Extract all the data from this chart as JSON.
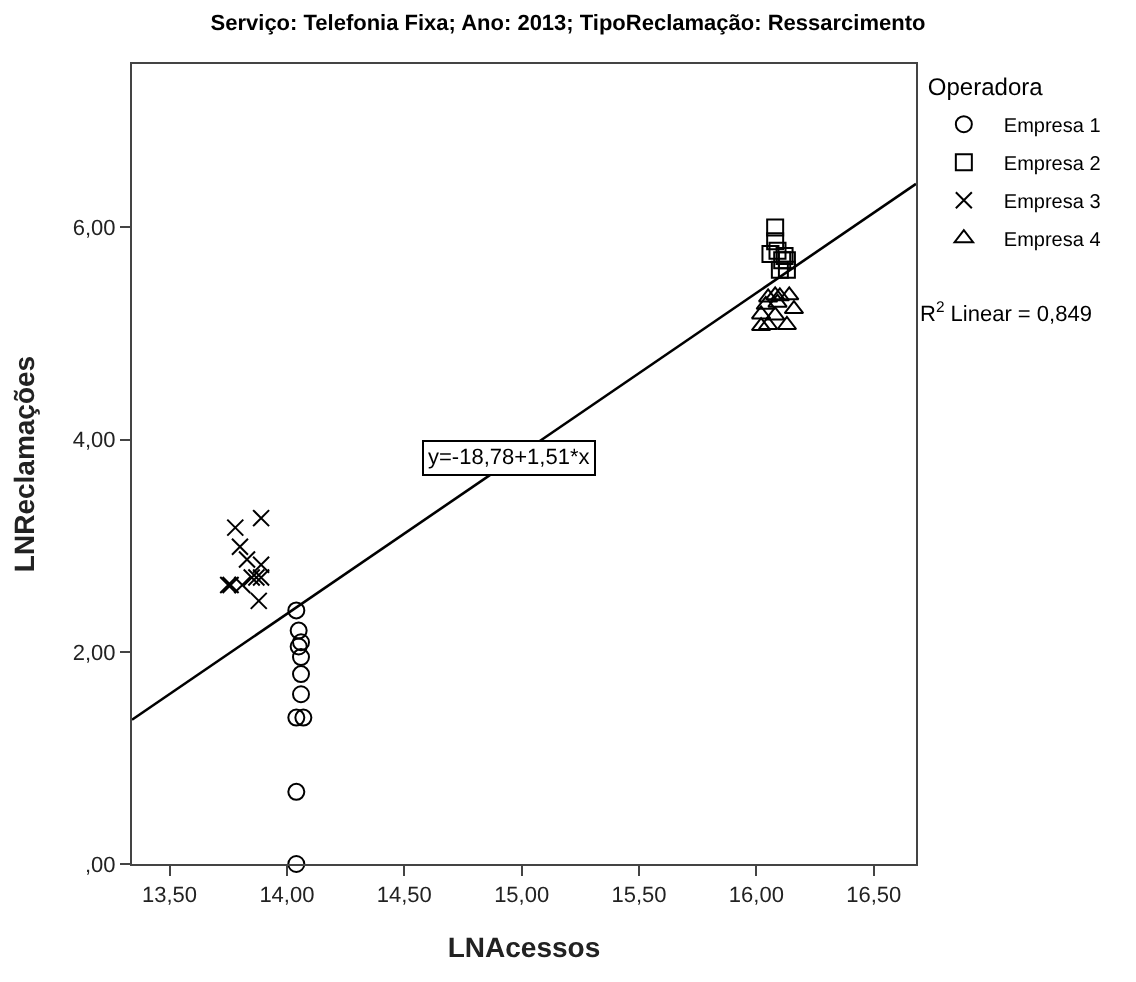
{
  "chart_data": {
    "type": "scatter",
    "title": "Serviço: Telefonia Fixa; Ano: 2013; TipoReclamação: Ressarcimento",
    "xlabel": "LNAcessos",
    "ylabel": "LNReclamações",
    "legend_title": "Operadora",
    "legend": "top right",
    "xlim": [
      13.34,
      16.68
    ],
    "ylim": [
      0,
      7.54
    ],
    "xticks": [
      {
        "value": 13.5,
        "label": "13,50"
      },
      {
        "value": 14.0,
        "label": "14,00"
      },
      {
        "value": 14.5,
        "label": "14,50"
      },
      {
        "value": 15.0,
        "label": "15,00"
      },
      {
        "value": 15.5,
        "label": "15,50"
      },
      {
        "value": 16.0,
        "label": "16,00"
      },
      {
        "value": 16.5,
        "label": "16,50"
      }
    ],
    "yticks": [
      {
        "value": 0,
        "label": ",00"
      },
      {
        "value": 2,
        "label": "2,00"
      },
      {
        "value": 4,
        "label": "4,00"
      },
      {
        "value": 6,
        "label": "6,00"
      }
    ],
    "series": [
      {
        "name": "Empresa 1",
        "color": "#000000",
        "marker": "circle",
        "x": [
          14.04,
          14.05,
          14.06,
          14.05,
          14.06,
          14.06,
          14.06,
          14.04,
          14.07,
          14.04,
          14.04
        ],
        "values": [
          2.39,
          2.2,
          2.09,
          2.05,
          1.95,
          1.79,
          1.6,
          1.38,
          1.38,
          0.68,
          0.0
        ]
      },
      {
        "name": "Empresa 2",
        "color": "#000000",
        "marker": "square",
        "x": [
          16.08,
          16.08,
          16.06,
          16.09,
          16.12,
          16.11,
          16.13,
          16.1,
          16.13
        ],
        "values": [
          6.0,
          5.87,
          5.75,
          5.78,
          5.73,
          5.69,
          5.69,
          5.6,
          5.6
        ]
      },
      {
        "name": "Empresa 3",
        "color": "#000000",
        "marker": "cross",
        "x": [
          13.8,
          13.83,
          13.89,
          13.75,
          13.76,
          13.81,
          13.85,
          13.87,
          13.89,
          13.88,
          13.78,
          13.89
        ],
        "values": [
          2.99,
          2.87,
          2.82,
          2.63,
          2.63,
          2.63,
          2.7,
          2.7,
          2.7,
          2.48,
          3.17,
          3.26
        ]
      },
      {
        "name": "Empresa 4",
        "color": "#000000",
        "marker": "triangle",
        "x": [
          16.05,
          16.08,
          16.1,
          16.14,
          16.04,
          16.09,
          16.16,
          16.02,
          16.08,
          16.02,
          16.05,
          16.13
        ],
        "values": [
          5.34,
          5.36,
          5.35,
          5.36,
          5.27,
          5.29,
          5.23,
          5.18,
          5.17,
          5.07,
          5.08,
          5.08
        ]
      },
      {
        "type": "line",
        "color": "#000000",
        "x": [
          13.34,
          16.68
        ],
        "values": [
          1.36,
          6.41
        ]
      }
    ],
    "annotations": [
      {
        "text": "y=-18,78+1,51*x",
        "x": 14.95,
        "y": 3.82
      },
      "R$^{2}$ Linear = 0,849"
    ]
  }
}
